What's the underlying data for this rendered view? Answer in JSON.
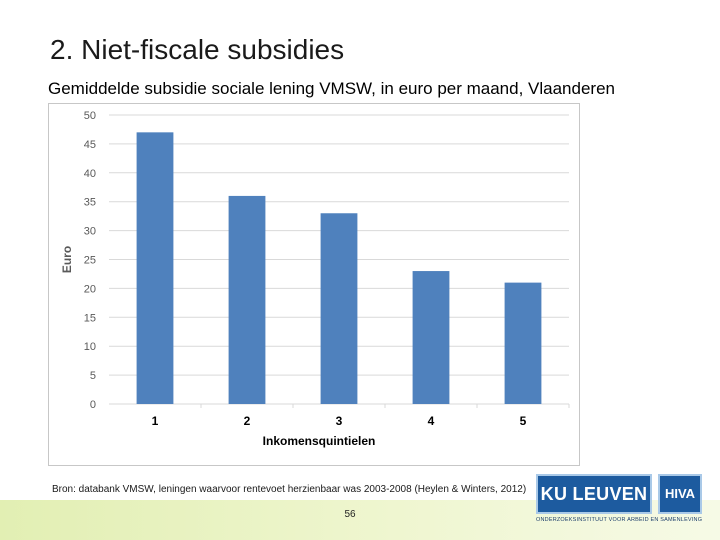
{
  "slide": {
    "title": "2. Niet-fiscale subsidies",
    "subtitle": "Gemiddelde subsidie sociale lening VMSW, in euro per maand, Vlaanderen",
    "source": "Bron: databank VMSW, leningen waarvoor rentevoet herzienbaar was 2003-2008 (Heylen & Winters, 2012)",
    "page_number": "56"
  },
  "logo": {
    "ku_text": "KU LEUVEN",
    "hiva_text": "HIVA",
    "tagline": "ONDERZOEKSINSTITUUT VOOR ARBEID EN SAMENLEVING"
  },
  "colors": {
    "bar": "#4f81bd",
    "gridline": "#d9d9d9",
    "axis_text": "#595959",
    "title_text": "#000000"
  },
  "chart_data": {
    "type": "bar",
    "categories": [
      "1",
      "2",
      "3",
      "4",
      "5"
    ],
    "values": [
      47,
      36,
      33,
      23,
      21
    ],
    "xlabel": "Inkomensquintielen",
    "ylabel": "Euro",
    "ylim": [
      0,
      50
    ],
    "yticks": [
      0,
      5,
      10,
      15,
      20,
      25,
      30,
      35,
      40,
      45,
      50
    ],
    "grid": true,
    "legend": "none"
  }
}
